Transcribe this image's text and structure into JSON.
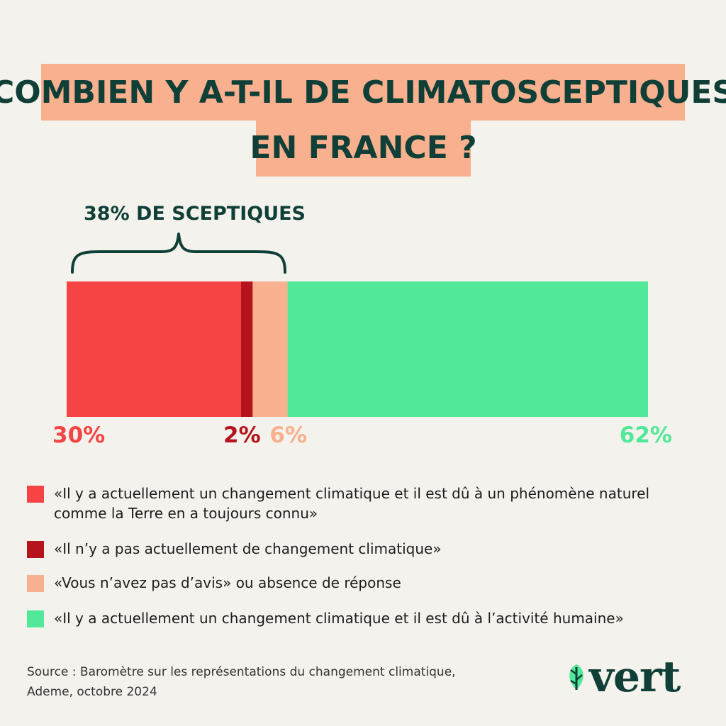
{
  "title": {
    "line1": "COMBIEN Y A-T-IL DE CLIMATOSCEPTIQUES",
    "line2": "EN FRANCE ?"
  },
  "chart_data": {
    "type": "bar",
    "orientation": "horizontal-stacked",
    "annotation": "38% DE SCEPTIQUES",
    "series": [
      {
        "name": "«Il y a actuellement un changement climatique et il est dû à un phénomène naturel comme la Terre en a toujours connu»",
        "value": 30,
        "label": "30%",
        "color": "#f64444"
      },
      {
        "name": "«Il n’y a pas actuellement de changement climatique»",
        "value": 2,
        "label": "2%",
        "color": "#b5141c"
      },
      {
        "name": "«Vous n’avez pas d’avis» ou absence de réponse",
        "value": 6,
        "label": "6%",
        "color": "#f9b08e"
      },
      {
        "name": "«Il y a actuellement un changement climatique et il est dû à l’activité humaine»",
        "value": 62,
        "label": "62%",
        "color": "#52e89a"
      }
    ],
    "total": 100
  },
  "source": {
    "line1": "Source : Baromètre sur les représentations du changement climatique,",
    "line2": "Ademe, octobre 2024"
  },
  "logo": {
    "text": "vert",
    "icon": "leaf-icon"
  }
}
